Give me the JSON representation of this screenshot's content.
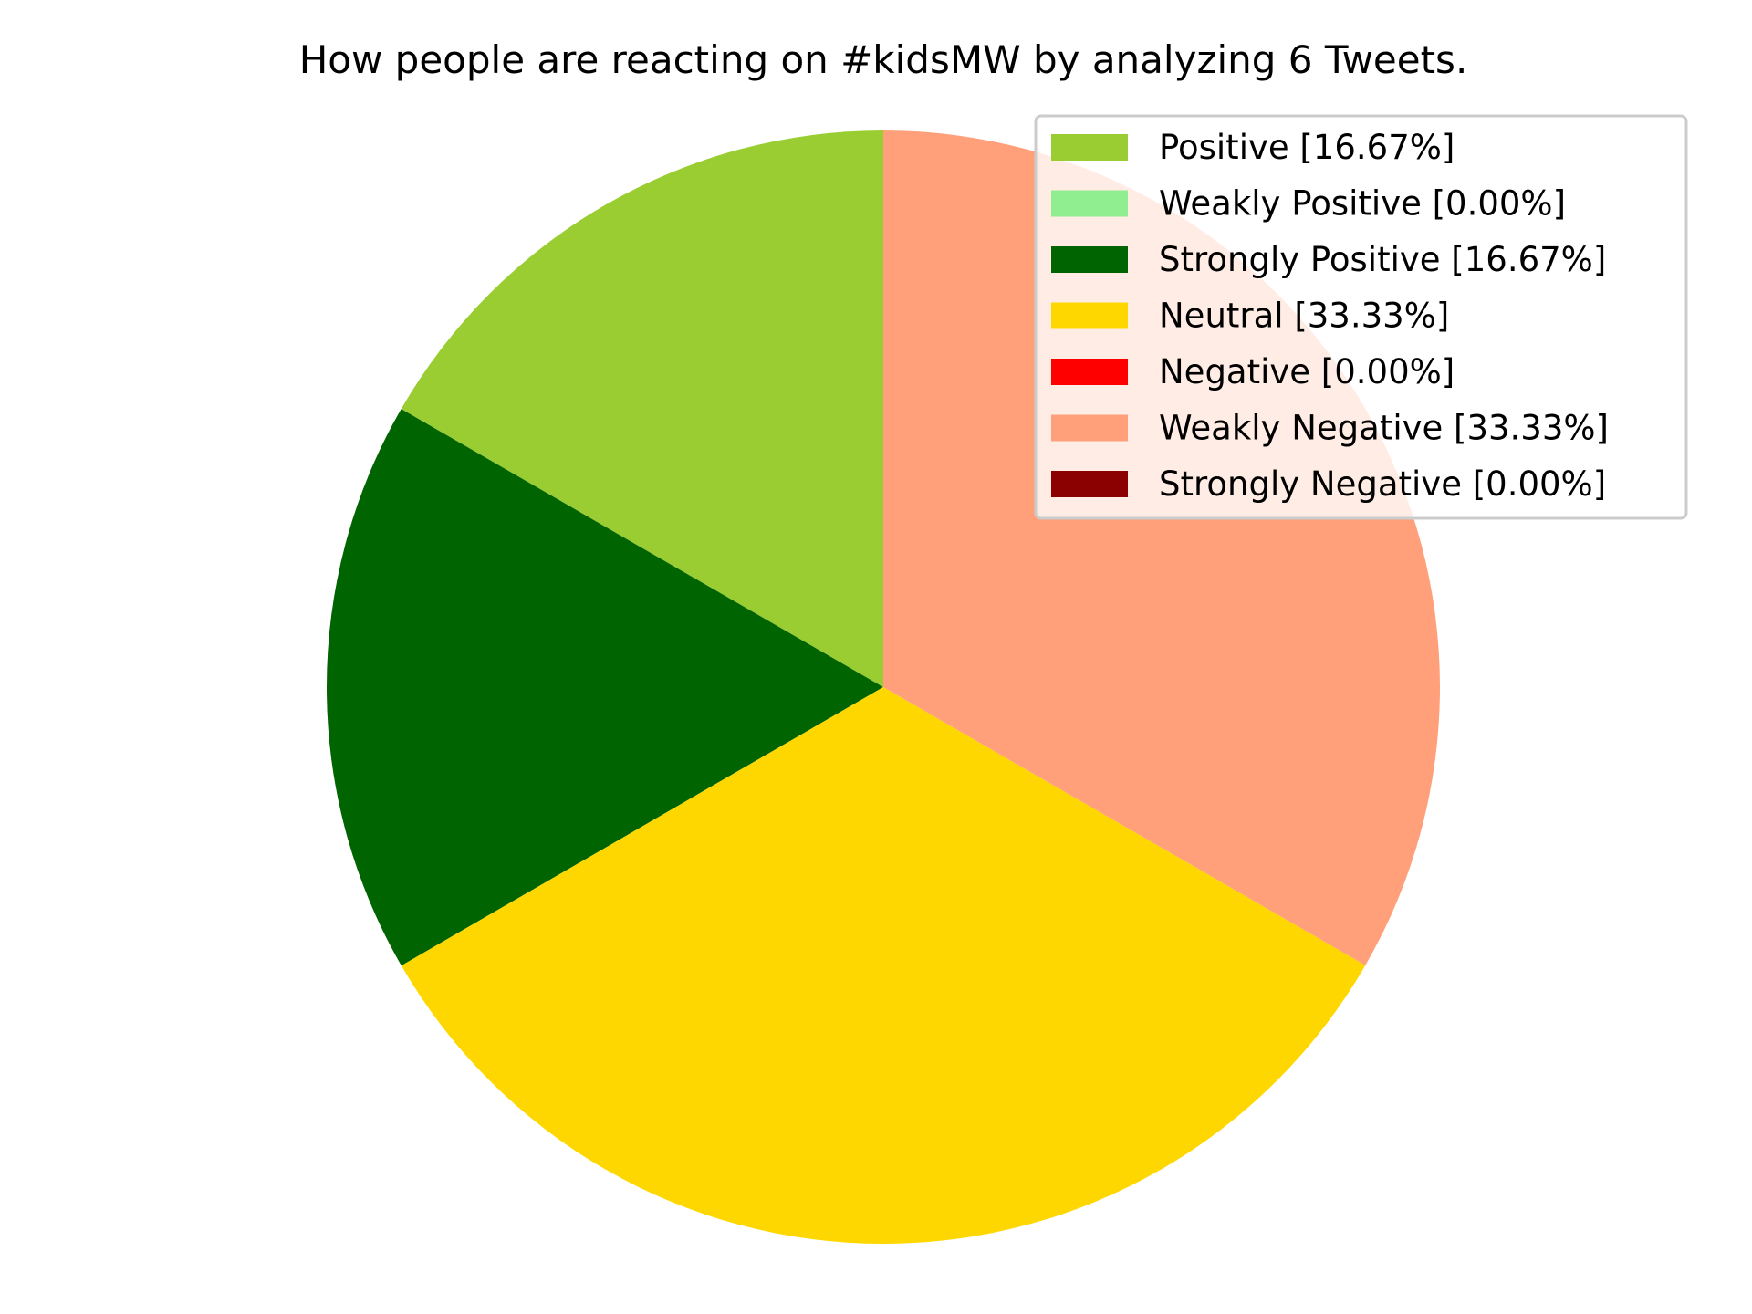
{
  "chart_data": {
    "type": "pie",
    "title": "How people are reacting on #kidsMW by analyzing 6 Tweets.",
    "start_angle_deg": 90,
    "direction": "counterclockwise",
    "legend_position": "top-right",
    "slices": [
      {
        "label": "Positive [16.67%]",
        "value": 16.67,
        "color": "#9acd32"
      },
      {
        "label": "Weakly Positive [0.00%]",
        "value": 0.0,
        "color": "#90ee90"
      },
      {
        "label": "Strongly Positive [16.67%]",
        "value": 16.67,
        "color": "#006400"
      },
      {
        "label": "Neutral [33.33%]",
        "value": 33.33,
        "color": "#ffd700"
      },
      {
        "label": "Negative [0.00%]",
        "value": 0.0,
        "color": "#ff0000"
      },
      {
        "label": "Weakly Negative [33.33%]",
        "value": 33.33,
        "color": "#ffa07a"
      },
      {
        "label": "Strongly Negative [0.00%]",
        "value": 0.0,
        "color": "#8b0000"
      }
    ]
  }
}
